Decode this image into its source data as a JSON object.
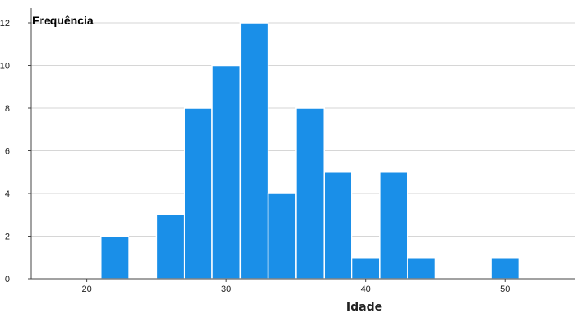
{
  "chart_data": {
    "type": "bar",
    "title": "",
    "xlabel": "Idade",
    "ylabel": "Frequência",
    "xlim": [
      16,
      55
    ],
    "ylim": [
      0,
      12
    ],
    "x_ticks": [
      20,
      30,
      40,
      50
    ],
    "y_ticks": [
      0,
      2,
      4,
      6,
      8,
      10,
      12
    ],
    "grid": "horizontal",
    "bar_color": "#1a8fe8",
    "bins": [
      {
        "start": 21,
        "end": 23,
        "value": 2
      },
      {
        "start": 25,
        "end": 27,
        "value": 3
      },
      {
        "start": 27,
        "end": 29,
        "value": 8
      },
      {
        "start": 29,
        "end": 31,
        "value": 10
      },
      {
        "start": 31,
        "end": 33,
        "value": 12
      },
      {
        "start": 33,
        "end": 35,
        "value": 4
      },
      {
        "start": 35,
        "end": 37,
        "value": 8
      },
      {
        "start": 37,
        "end": 39,
        "value": 5
      },
      {
        "start": 39,
        "end": 41,
        "value": 1
      },
      {
        "start": 41,
        "end": 43,
        "value": 5
      },
      {
        "start": 43,
        "end": 45,
        "value": 1
      },
      {
        "start": 49,
        "end": 51,
        "value": 1
      }
    ]
  }
}
